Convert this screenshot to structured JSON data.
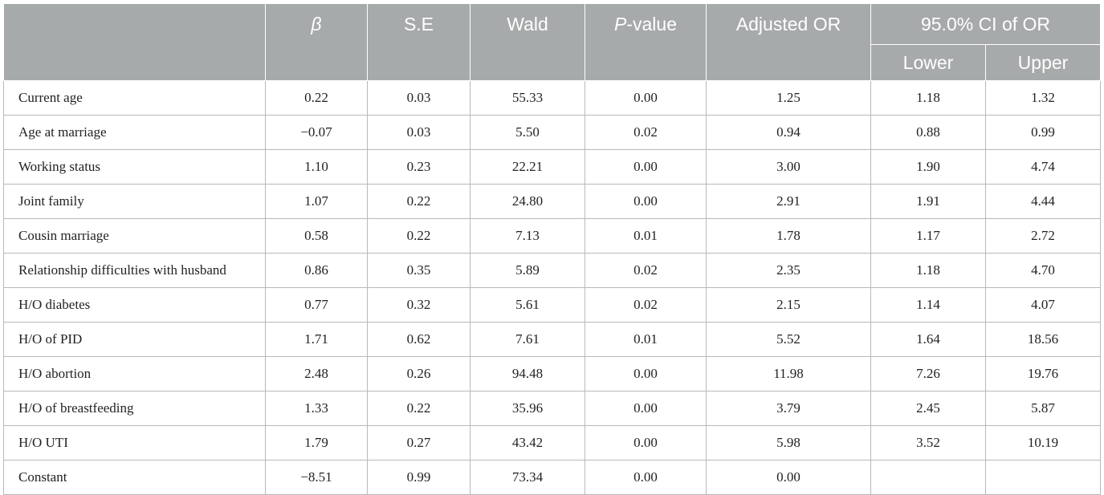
{
  "table": {
    "headers": {
      "blank": "",
      "beta": "β",
      "se": "S.E",
      "wald": "Wald",
      "p_italic": "P",
      "p_rest": "-value",
      "adjusted_or": "Adjusted OR",
      "ci": "95.0% CI of OR",
      "lower": "Lower",
      "upper": "Upper"
    },
    "rows": [
      [
        "Current age",
        "0.22",
        "0.03",
        "55.33",
        "0.00",
        "1.25",
        "1.18",
        "1.32"
      ],
      [
        "Age at marriage",
        "−0.07",
        "0.03",
        "5.50",
        "0.02",
        "0.94",
        "0.88",
        "0.99"
      ],
      [
        "Working status",
        "1.10",
        "0.23",
        "22.21",
        "0.00",
        "3.00",
        "1.90",
        "4.74"
      ],
      [
        "Joint family",
        "1.07",
        "0.22",
        "24.80",
        "0.00",
        "2.91",
        "1.91",
        "4.44"
      ],
      [
        "Cousin marriage",
        "0.58",
        "0.22",
        "7.13",
        "0.01",
        "1.78",
        "1.17",
        "2.72"
      ],
      [
        "Relationship difficulties with husband",
        "0.86",
        "0.35",
        "5.89",
        "0.02",
        "2.35",
        "1.18",
        "4.70"
      ],
      [
        "H/O diabetes",
        "0.77",
        "0.32",
        "5.61",
        "0.02",
        "2.15",
        "1.14",
        "4.07"
      ],
      [
        "H/O of PID",
        "1.71",
        "0.62",
        "7.61",
        "0.01",
        "5.52",
        "1.64",
        "18.56"
      ],
      [
        "H/O abortion",
        "2.48",
        "0.26",
        "94.48",
        "0.00",
        "11.98",
        "7.26",
        "19.76"
      ],
      [
        "H/O of breastfeeding",
        "1.33",
        "0.22",
        "35.96",
        "0.00",
        "3.79",
        "2.45",
        "5.87"
      ],
      [
        "H/O UTI",
        "1.79",
        "0.27",
        "43.42",
        "0.00",
        "5.98",
        "3.52",
        "10.19"
      ],
      [
        "Constant",
        "−8.51",
        "0.99",
        "73.34",
        "0.00",
        "0.00",
        "",
        ""
      ]
    ]
  }
}
